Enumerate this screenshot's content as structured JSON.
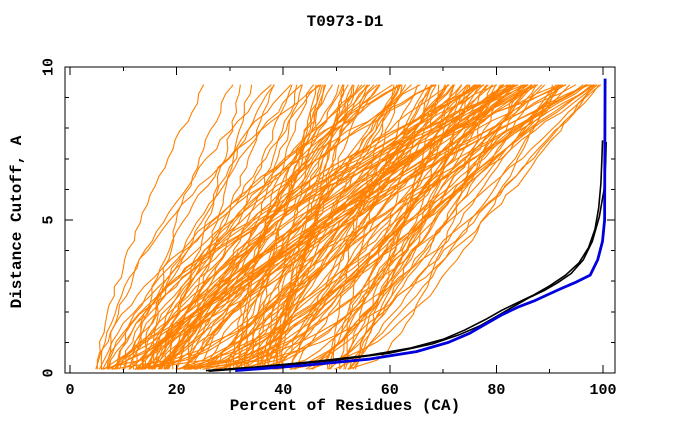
{
  "window": {
    "background": "#ffffff"
  },
  "chart_data": {
    "type": "line",
    "title": "T0973-D1",
    "xlabel": "Percent of Residues (CA)",
    "ylabel": "Distance Cutoff, A",
    "xlim": [
      0,
      102
    ],
    "ylim": [
      0,
      10
    ],
    "grid": false,
    "legend": "none",
    "axes": {
      "x_major_ticks": [
        0,
        20,
        40,
        60,
        80,
        100
      ],
      "x_major_labels": [
        "0",
        "20",
        "40",
        "60",
        "80",
        "100"
      ],
      "x_minor_ticks": [
        10,
        30,
        50,
        70,
        90
      ],
      "y_major_ticks": [
        0,
        5,
        10
      ],
      "y_major_labels": [
        "0",
        "5",
        "10"
      ],
      "y_minor_ticks": [
        1,
        2,
        3,
        4,
        6,
        7,
        8,
        9
      ],
      "ticks_inward": true,
      "mirrored_ticks": true
    },
    "colors": {
      "frame": "#000000",
      "ensemble_orange": "#ff8000",
      "highlight_black": "#000000",
      "highlight_blue": "#0000dd"
    },
    "series": [
      {
        "name": "server-model-ensemble",
        "role": "ensemble",
        "color": "#ff8000",
        "width": 1.1,
        "count": 150,
        "seed": 20973,
        "x_start_range": [
          4.5,
          55
        ],
        "x_end_range": [
          25,
          100.5
        ],
        "shape_exp_range": [
          0.45,
          1.85
        ],
        "y_range": [
          0.12,
          9.55
        ],
        "jitter": 0.45
      },
      {
        "name": "model-black-a",
        "role": "curve",
        "color": "#000000",
        "width": 1.6,
        "points": [
          [
            25.5,
            0.08
          ],
          [
            35,
            0.2
          ],
          [
            46,
            0.38
          ],
          [
            56,
            0.58
          ],
          [
            64,
            0.82
          ],
          [
            70,
            1.1
          ],
          [
            74,
            1.4
          ],
          [
            78,
            1.75
          ],
          [
            81,
            2.05
          ],
          [
            84,
            2.3
          ],
          [
            87,
            2.55
          ],
          [
            90,
            2.85
          ],
          [
            93,
            3.2
          ],
          [
            95.5,
            3.6
          ],
          [
            97.3,
            4.1
          ],
          [
            98.5,
            4.7
          ],
          [
            99.2,
            5.4
          ],
          [
            99.6,
            6.2
          ],
          [
            99.8,
            7.0
          ],
          [
            99.9,
            7.6
          ]
        ]
      },
      {
        "name": "model-black-b",
        "role": "curve",
        "color": "#000000",
        "width": 1.6,
        "points": [
          [
            26,
            0.06
          ],
          [
            38,
            0.22
          ],
          [
            50,
            0.42
          ],
          [
            60,
            0.65
          ],
          [
            68,
            0.95
          ],
          [
            73,
            1.25
          ],
          [
            77,
            1.55
          ],
          [
            80,
            1.85
          ],
          [
            83,
            2.15
          ],
          [
            86,
            2.45
          ],
          [
            89,
            2.7
          ],
          [
            91.5,
            2.95
          ],
          [
            94,
            3.25
          ],
          [
            96.3,
            3.7
          ],
          [
            98,
            4.3
          ],
          [
            99.3,
            5.1
          ],
          [
            100.2,
            6.0
          ],
          [
            100.5,
            6.9
          ],
          [
            100.6,
            7.55
          ]
        ]
      },
      {
        "name": "model-blue",
        "role": "curve",
        "color": "#0000dd",
        "width": 2.8,
        "points": [
          [
            31,
            0.08
          ],
          [
            44,
            0.25
          ],
          [
            56,
            0.45
          ],
          [
            65,
            0.7
          ],
          [
            71,
            1.0
          ],
          [
            75,
            1.3
          ],
          [
            78,
            1.6
          ],
          [
            81,
            1.9
          ],
          [
            84,
            2.15
          ],
          [
            87,
            2.35
          ],
          [
            89.5,
            2.55
          ],
          [
            92,
            2.75
          ],
          [
            94.7,
            2.95
          ],
          [
            97.6,
            3.2
          ],
          [
            99,
            3.7
          ],
          [
            99.9,
            4.3
          ],
          [
            100.3,
            5.0
          ],
          [
            100.4,
            9.62
          ]
        ]
      }
    ]
  }
}
